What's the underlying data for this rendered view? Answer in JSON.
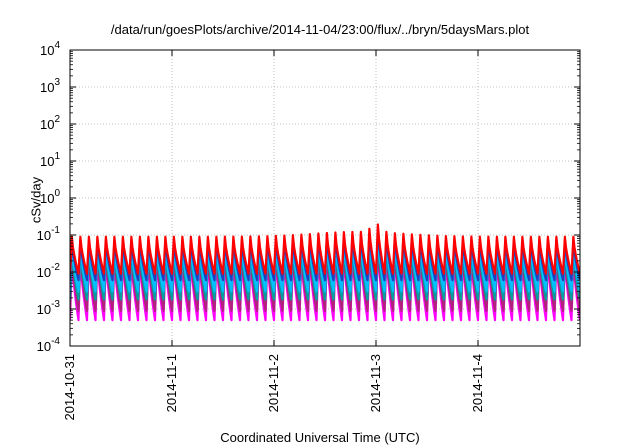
{
  "chart_data": {
    "type": "line",
    "title": "/data/run/goesPlots/archive/2014-11-04/23:00/flux/../bryn/5daysMars.plot",
    "xlabel": "Coordinated Universal Time (UTC)",
    "ylabel": "cSv/day",
    "yscale": "log",
    "ylim": [
      0.0001,
      10000
    ],
    "xlim": [
      "2014-10-31 00:00",
      "2014-11-05 00:00"
    ],
    "x_ticks": [
      "2014-10-31",
      "2014-11-1",
      "2014-11-2",
      "2014-11-3",
      "2014-11-4"
    ],
    "y_ticks": [
      {
        "base": "10",
        "exp": "-4",
        "value": 0.0001
      },
      {
        "base": "10",
        "exp": "-3",
        "value": 0.001
      },
      {
        "base": "10",
        "exp": "-2",
        "value": 0.01
      },
      {
        "base": "10",
        "exp": "-1",
        "value": 0.1
      },
      {
        "base": "10",
        "exp": "0",
        "value": 1
      },
      {
        "base": "10",
        "exp": "1",
        "value": 10
      },
      {
        "base": "10",
        "exp": "2",
        "value": 100
      },
      {
        "base": "10",
        "exp": "3",
        "value": 1000
      },
      {
        "base": "10",
        "exp": "4",
        "value": 10000
      }
    ],
    "grid": true,
    "legend": "none",
    "cycle_period_hours": 2,
    "series": [
      {
        "color": "#ff00ff",
        "peak": 0.025,
        "trough": 0.0005
      },
      {
        "color": "#b0237a",
        "peak": 0.03,
        "trough": 0.0009
      },
      {
        "color": "#00a0a0",
        "peak": 0.04,
        "trough": 0.0018
      },
      {
        "color": "#00bfff",
        "peak": 0.05,
        "trough": 0.003
      },
      {
        "color": "#1f3fbf",
        "peak": 0.07,
        "trough": 0.006
      },
      {
        "color": "#ff0000",
        "peak": 0.09,
        "trough": 0.009
      }
    ]
  }
}
